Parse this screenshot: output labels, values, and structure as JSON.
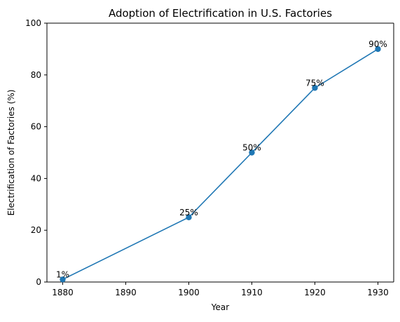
{
  "chart_data": {
    "type": "line",
    "title": "Adoption of Electrification in U.S. Factories",
    "xlabel": "Year",
    "ylabel": "Electrification of Factories (%)",
    "xlim": [
      1877.5,
      1932.5
    ],
    "ylim": [
      0,
      100
    ],
    "xticks": [
      1880,
      1890,
      1900,
      1910,
      1920,
      1930
    ],
    "yticks": [
      0,
      20,
      40,
      60,
      80,
      100
    ],
    "grid": false,
    "legend": "none",
    "series": [
      {
        "x": [
          1880,
          1900,
          1910,
          1920,
          1930
        ],
        "y": [
          1,
          25,
          50,
          75,
          90
        ],
        "labels": [
          "1%",
          "25%",
          "50%",
          "75%",
          "90%"
        ],
        "color": "#1f77b4",
        "marker": "circle"
      }
    ]
  }
}
